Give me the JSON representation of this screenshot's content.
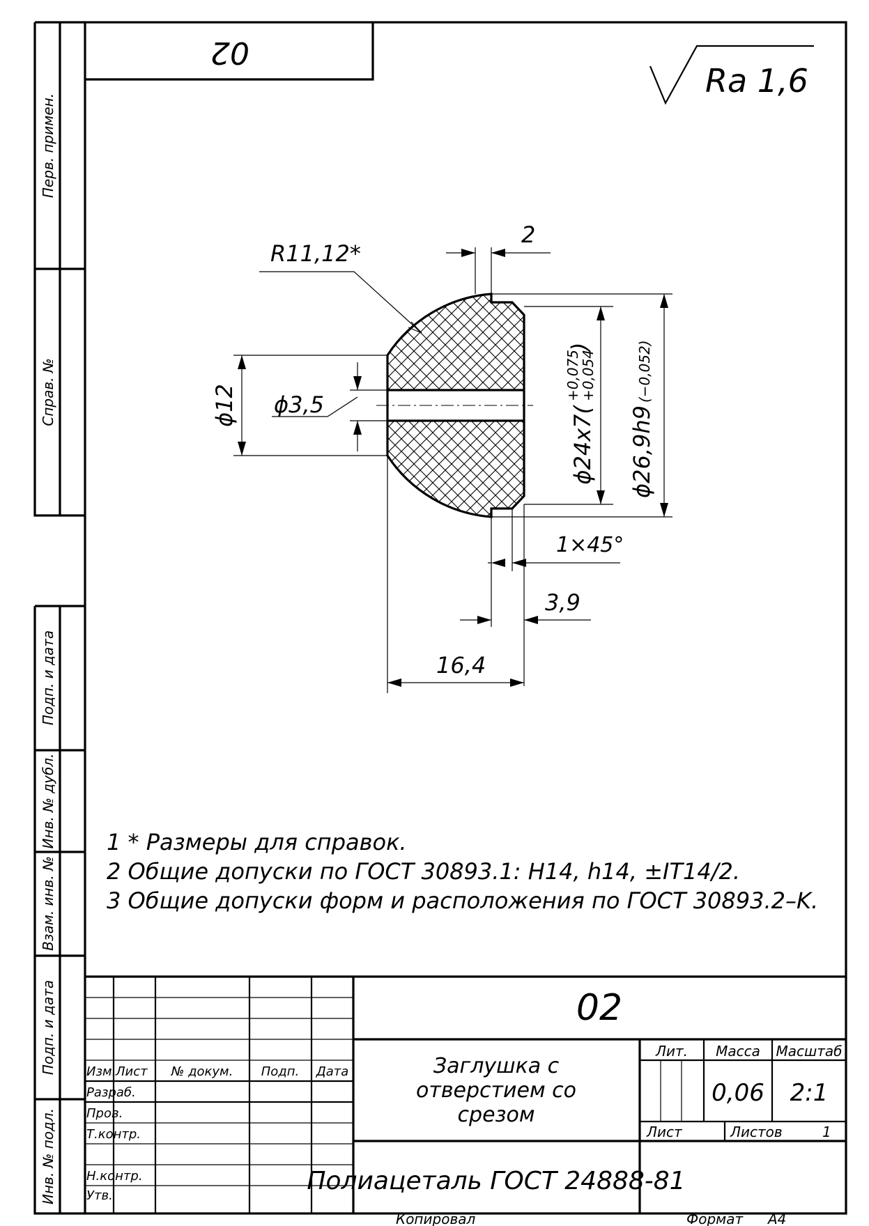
{
  "sheet": {
    "rotated_code": "02",
    "roughness": "Ra 1,6",
    "side_labels": {
      "perv_primen": "Перв. примен.",
      "sprav_no": "Справ. №",
      "podp_data_top": "Подп. и дата",
      "inv_dubl": "Инв. № дубл.",
      "vzam_inv": "Взам. инв. №",
      "podp_data_bottom": "Подп. и дата",
      "inv_podl": "Инв. № подл."
    }
  },
  "dimensions": {
    "radius": "R11,12*",
    "width_2": "2",
    "dia_12": "ϕ12",
    "dia_3_5": "ϕ3,5",
    "dia_24_main": "ϕ24x7",
    "dia_24_tol_upper": "+0,075",
    "dia_24_tol_lower": "+0,054",
    "dia_26_main": "ϕ26,9h9",
    "dia_26_tol": "(−0,052)",
    "chamfer": "1×45°",
    "len_3_9": "3,9",
    "len_16_4": "16,4"
  },
  "notes": [
    "1  * Размеры для справок.",
    "2  Общие допуски по ГОСТ 30893.1: H14, h14, ±IT14/2.",
    "3  Общие допуски форм и расположения по ГОСТ 30893.2–K."
  ],
  "title_block": {
    "designation": "02",
    "part_name_lines": [
      "Заглушка с",
      "отверстием со",
      "срезом"
    ],
    "material": "Полиацеталь ГОСТ 24888-81",
    "lit_label": "Лит.",
    "mass_label": "Масса",
    "scale_label": "Масштаб",
    "mass_value": "0,06",
    "scale_value": "2:1",
    "sheet_label": "Лист",
    "sheets_label": "Листов",
    "sheets_value": "1",
    "col_izm": "Изм.",
    "col_list": "Лист",
    "col_doc": "№ докум.",
    "col_podp": "Подп.",
    "col_data": "Дата",
    "row_razrab": "Разраб.",
    "row_prov": "Пров.",
    "row_tkontr": "Т.контр.",
    "row_nkontr": "Н.контр.",
    "row_utv": "Утв."
  },
  "footer": {
    "copied": "Копировал",
    "format_label": "Формат",
    "format_value": "A4"
  }
}
